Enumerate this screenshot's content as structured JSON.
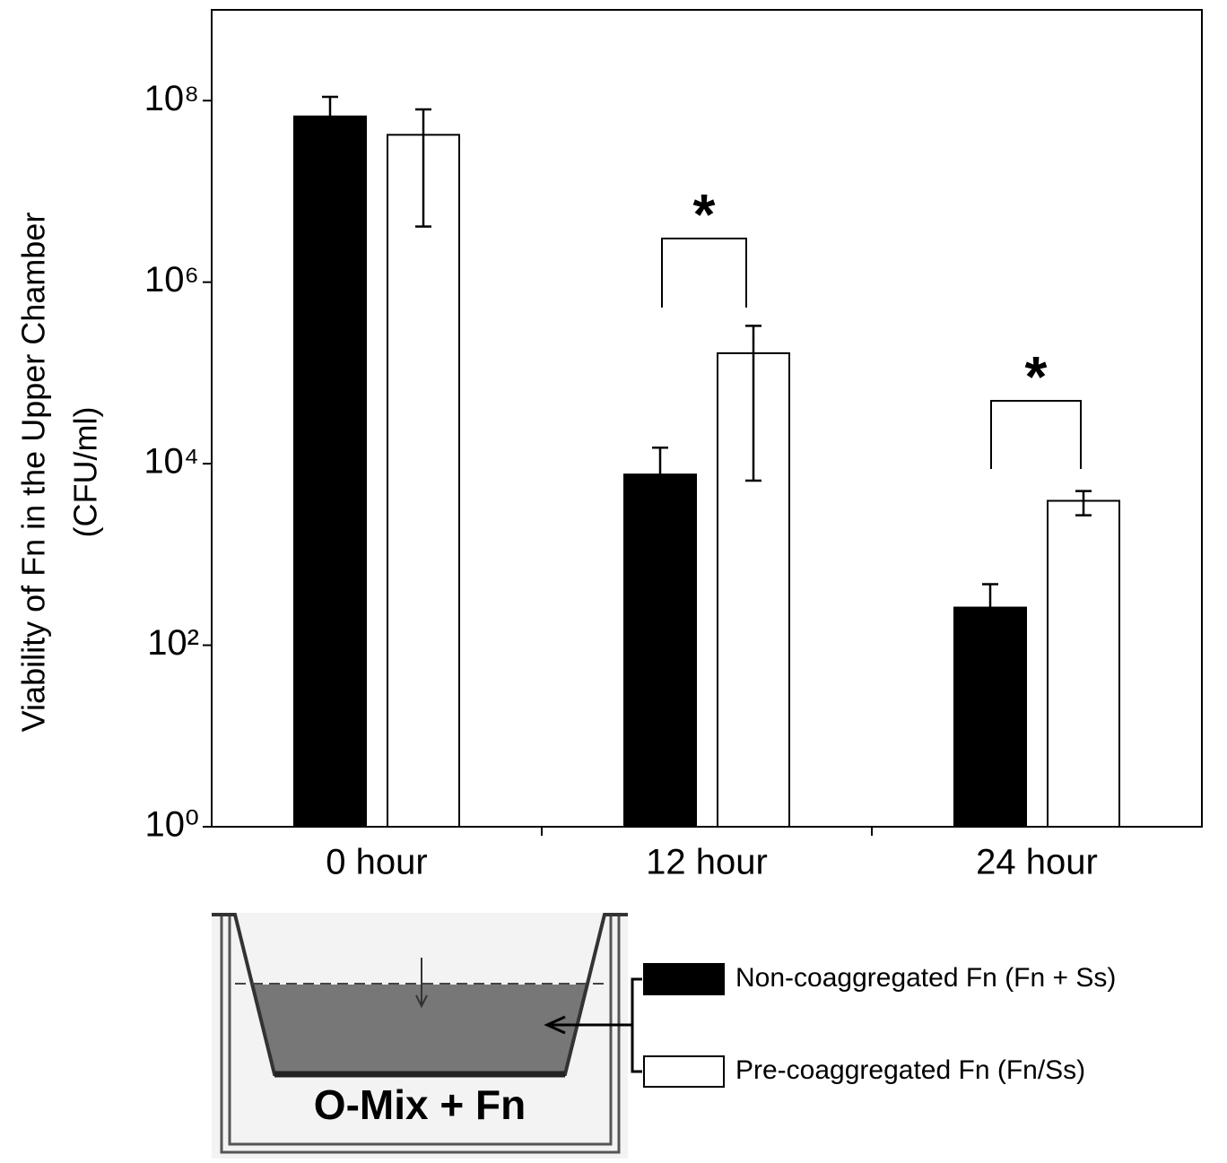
{
  "chart_data": {
    "type": "bar",
    "log_scale": true,
    "ylabel": [
      "Viability of Fn in the Upper Chamber",
      "(CFU/ml)"
    ],
    "categories": [
      "0 hour",
      "12 hour",
      "24 hour"
    ],
    "series": [
      {
        "name": "Non-coaggregated Fn (Fn + Ss)",
        "color": "#000000",
        "values": [
          67000000,
          7600,
          260
        ],
        "error_high": [
          110000000,
          15000,
          470
        ]
      },
      {
        "name": "Pre-coaggregated Fn (Fn/Ss)",
        "color": "#ffffff",
        "values": [
          42000000,
          165000,
          3900
        ],
        "error_high": [
          80000000,
          330000,
          5000
        ],
        "error_low": [
          4100000,
          6500,
          2700
        ]
      }
    ],
    "ylim": [
      1,
      1000000000
    ],
    "yticks": [
      {
        "value": 1,
        "label": "10⁰"
      },
      {
        "value": 100,
        "label": "10²"
      },
      {
        "value": 10000,
        "label": "10⁴"
      },
      {
        "value": 1000000,
        "label": "10⁶"
      },
      {
        "value": 100000000,
        "label": "10⁸"
      }
    ],
    "annotations": [
      "*",
      "*"
    ],
    "diagram_label": "O-Mix + Fn"
  }
}
